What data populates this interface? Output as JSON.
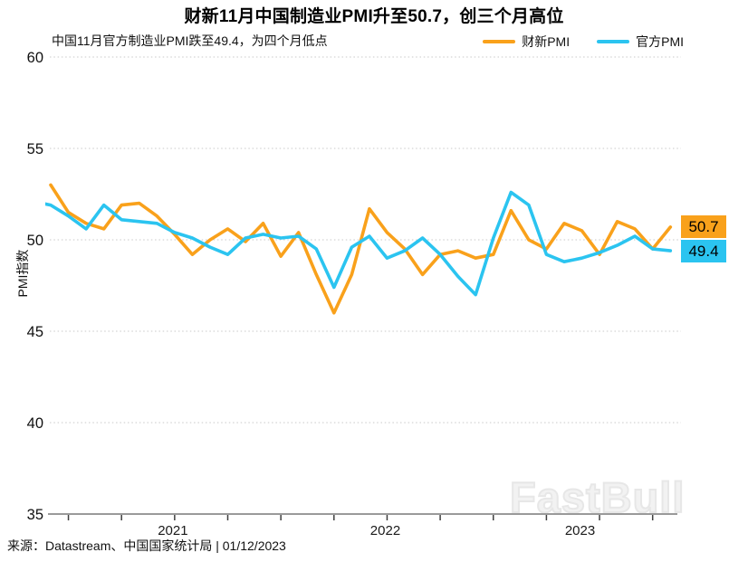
{
  "header": {
    "title": "财新11月中国制造业PMI升至50.7，创三个月高位",
    "subtitle": "中国11月官方制造业PMI跌至49.4，为四个月低点"
  },
  "legend": {
    "items": [
      {
        "label": "财新PMI",
        "color": "#F9A11B"
      },
      {
        "label": "官方PMI",
        "color": "#2BC4F0"
      }
    ]
  },
  "watermark": "FastBull",
  "footer": {
    "source": "来源：Datastream、中国国家统计局 | 01/12/2023"
  },
  "chart_data": {
    "type": "line",
    "title": "财新11月中国制造业PMI升至50.7，创三个月高位",
    "subtitle": "中国11月官方制造业PMI跌至49.4，为四个月低点",
    "ylabel": "PMI指数",
    "xlabel": "",
    "ylim": [
      35,
      60
    ],
    "yticks": [
      35,
      40,
      45,
      50,
      55,
      60
    ],
    "grid": "horizontal-dotted",
    "legend_position": "top-right",
    "x_axis": {
      "start": "2020-11",
      "end": "2023-11",
      "tick_interval": "quarterly",
      "year_labels": [
        {
          "label": "2021",
          "month_center": 6.9
        },
        {
          "label": "2022",
          "month_center": 18.9
        },
        {
          "label": "2023",
          "month_center": 29.9
        }
      ]
    },
    "series": [
      {
        "name": "财新PMI",
        "color": "#F9A11B",
        "start": "2020-12",
        "values": [
          53.0,
          51.5,
          50.9,
          50.6,
          51.9,
          52.0,
          51.3,
          50.3,
          49.2,
          50.0,
          50.6,
          49.9,
          50.9,
          49.1,
          50.4,
          48.1,
          46.0,
          48.1,
          51.7,
          50.4,
          49.5,
          48.1,
          49.2,
          49.4,
          49.0,
          49.2,
          51.6,
          50.0,
          49.5,
          50.9,
          50.5,
          49.2,
          51.0,
          50.6,
          49.5,
          50.7
        ],
        "end_label": "50.7"
      },
      {
        "name": "官方PMI",
        "color": "#2BC4F0",
        "start": "2020-11",
        "values": [
          52.1,
          51.9,
          51.3,
          50.6,
          51.9,
          51.1,
          51.0,
          50.9,
          50.4,
          50.1,
          49.6,
          49.2,
          50.1,
          50.3,
          50.1,
          50.2,
          49.5,
          47.4,
          49.6,
          50.2,
          49.0,
          49.4,
          50.1,
          49.2,
          48.0,
          47.0,
          50.1,
          52.6,
          51.9,
          49.2,
          48.8,
          49.0,
          49.3,
          49.7,
          50.2,
          49.5,
          49.4
        ],
        "end_label": "49.4"
      }
    ]
  }
}
